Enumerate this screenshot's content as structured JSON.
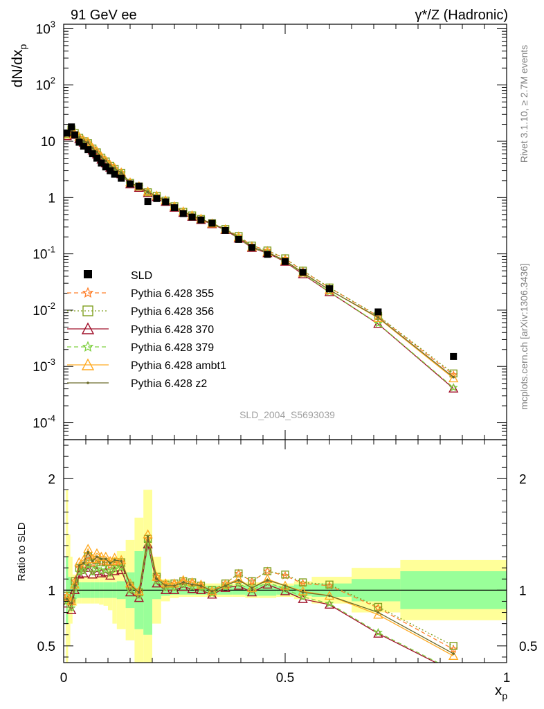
{
  "header": {
    "left": "91 GeV ee",
    "right": "γ*/Z (Hadronic)"
  },
  "side_text": {
    "rivet": "Rivet 3.1.10, ≥ 2.7M events",
    "mcplots": "mcplots.cern.ch [arXiv:1306.3436]"
  },
  "watermark": "SLD_2004_S5693039",
  "chart_data": [
    {
      "type": "scatter",
      "panel": "main",
      "ylabel": "dN/dx_p",
      "yscale": "log",
      "ylim": [
        5e-05,
        1200
      ],
      "xlim": [
        0,
        1
      ],
      "y_tick_labels": [
        "10^-4",
        "10^-3",
        "10^-2",
        "10^-1",
        "1",
        "10",
        "10^2",
        "10^3"
      ],
      "legend_position": "lower-left",
      "data_series": {
        "name": "SLD",
        "x": [
          0.0075,
          0.0175,
          0.025,
          0.035,
          0.045,
          0.055,
          0.065,
          0.075,
          0.085,
          0.095,
          0.105,
          0.115,
          0.13,
          0.15,
          0.17,
          0.19,
          0.21,
          0.23,
          0.25,
          0.27,
          0.29,
          0.31,
          0.335,
          0.365,
          0.395,
          0.425,
          0.46,
          0.5,
          0.54,
          0.6,
          0.71,
          0.88
        ],
        "y": [
          14,
          18,
          13,
          9.6,
          8.2,
          7.1,
          6.0,
          5.0,
          4.1,
          3.5,
          3.0,
          2.6,
          2.2,
          1.75,
          1.6,
          0.85,
          0.96,
          0.84,
          0.66,
          0.52,
          0.45,
          0.4,
          0.35,
          0.26,
          0.18,
          0.13,
          0.098,
          0.073,
          0.047,
          0.024,
          0.0093,
          0.0015
        ]
      },
      "series": [
        {
          "name": "Pythia 6.428 355",
          "ratio": [
            0.95,
            0.9,
            1.08,
            1.2,
            1.22,
            1.3,
            1.24,
            1.27,
            1.25,
            1.25,
            1.22,
            1.25,
            1.25,
            1.04,
            0.98,
            1.46,
            1.12,
            1.05,
            1.06,
            1.08,
            1.07,
            1.04,
            1.0,
            1.06,
            1.15,
            1.08,
            1.17,
            1.13,
            1.06,
            1.04,
            0.84,
            0.47
          ]
        },
        {
          "name": "Pythia 6.428 356",
          "ratio": [
            0.95,
            0.9,
            1.08,
            1.2,
            1.22,
            1.3,
            1.24,
            1.27,
            1.25,
            1.25,
            1.22,
            1.25,
            1.25,
            1.04,
            0.98,
            1.46,
            1.12,
            1.05,
            1.06,
            1.08,
            1.07,
            1.04,
            1.0,
            1.06,
            1.15,
            1.08,
            1.17,
            1.14,
            1.07,
            1.05,
            0.85,
            0.5
          ]
        },
        {
          "name": "Pythia 6.428 370",
          "ratio": [
            0.88,
            0.82,
            1.0,
            1.14,
            1.15,
            1.2,
            1.14,
            1.17,
            1.15,
            1.16,
            1.13,
            1.17,
            1.18,
            0.98,
            0.93,
            1.41,
            1.06,
            1.0,
            1.0,
            1.03,
            1.01,
            1.0,
            0.96,
            1.02,
            1.04,
            0.98,
            1.05,
            0.99,
            0.92,
            0.87,
            0.61,
            0.27
          ]
        },
        {
          "name": "Pythia 6.428 379",
          "ratio": [
            0.9,
            0.84,
            1.02,
            1.16,
            1.17,
            1.22,
            1.16,
            1.19,
            1.17,
            1.18,
            1.15,
            1.19,
            1.2,
            1.0,
            0.95,
            1.43,
            1.08,
            1.02,
            1.02,
            1.05,
            1.03,
            1.02,
            0.97,
            1.03,
            1.06,
            1.0,
            1.07,
            1.01,
            0.94,
            0.88,
            0.62,
            0.28
          ]
        },
        {
          "name": "Pythia 6.428 ambt1",
          "ratio": [
            0.94,
            0.9,
            1.05,
            1.25,
            1.27,
            1.37,
            1.28,
            1.33,
            1.3,
            1.3,
            1.26,
            1.29,
            1.27,
            1.06,
            0.99,
            1.5,
            1.12,
            1.06,
            1.06,
            1.09,
            1.07,
            1.05,
            0.99,
            1.05,
            1.1,
            1.02,
            1.1,
            1.04,
            0.99,
            0.95,
            0.78,
            0.41
          ]
        },
        {
          "name": "Pythia 6.428 z2",
          "ratio": [
            0.92,
            0.88,
            1.04,
            1.22,
            1.24,
            1.34,
            1.26,
            1.3,
            1.28,
            1.28,
            1.24,
            1.27,
            1.26,
            1.05,
            0.98,
            1.48,
            1.1,
            1.04,
            1.04,
            1.07,
            1.05,
            1.04,
            0.99,
            1.04,
            1.09,
            1.02,
            1.09,
            1.04,
            0.98,
            0.95,
            0.8,
            0.43
          ]
        }
      ]
    },
    {
      "type": "line",
      "panel": "ratio",
      "ylabel": "Ratio to SLD",
      "xlabel": "x_p",
      "xlim": [
        0,
        1
      ],
      "ylim": [
        0.35,
        2.35
      ],
      "x_ticks": [
        0,
        0.5,
        1
      ],
      "x_tick_labels": [
        "0",
        "0.5",
        "1"
      ],
      "y_ticks": [
        0.5,
        1,
        2
      ],
      "y_tick_labels": [
        "0.5",
        "1",
        "2"
      ],
      "band_edges": [
        0.005,
        0.01,
        0.015,
        0.02,
        0.03,
        0.04,
        0.05,
        0.06,
        0.07,
        0.08,
        0.09,
        0.1,
        0.11,
        0.12,
        0.14,
        0.16,
        0.18,
        0.2,
        0.22,
        0.24,
        0.26,
        0.28,
        0.3,
        0.32,
        0.35,
        0.38,
        0.41,
        0.44,
        0.48,
        0.52,
        0.56,
        0.65,
        0.76,
        1.0
      ],
      "band_stat_half": [
        0.3,
        0.12,
        0.1,
        0.08,
        0.07,
        0.07,
        0.07,
        0.07,
        0.07,
        0.07,
        0.07,
        0.07,
        0.07,
        0.08,
        0.16,
        0.35,
        0.4,
        0.08,
        0.05,
        0.04,
        0.04,
        0.04,
        0.04,
        0.04,
        0.04,
        0.04,
        0.05,
        0.05,
        0.04,
        0.05,
        0.06,
        0.1,
        0.17
      ],
      "band_total_half": [
        0.9,
        0.5,
        0.3,
        0.14,
        0.12,
        0.12,
        0.12,
        0.12,
        0.12,
        0.13,
        0.14,
        0.18,
        0.3,
        0.35,
        0.45,
        0.65,
        0.9,
        0.3,
        0.1,
        0.07,
        0.06,
        0.06,
        0.06,
        0.06,
        0.06,
        0.06,
        0.07,
        0.07,
        0.06,
        0.08,
        0.12,
        0.2,
        0.27
      ]
    }
  ],
  "colors": {
    "data": "#000000",
    "stat_band": "#99ff99",
    "total_band": "#ffff99",
    "series": [
      "#ff7f2a",
      "#7f9f1f",
      "#a0102a",
      "#7fd040",
      "#ffaa22",
      "#6b6b2a"
    ],
    "dashes": [
      "6,4",
      "2,3",
      "",
      "6,4",
      "",
      ""
    ],
    "markers": [
      "star",
      "open-square",
      "open-triangle",
      "star",
      "open-triangle",
      "dot"
    ]
  }
}
